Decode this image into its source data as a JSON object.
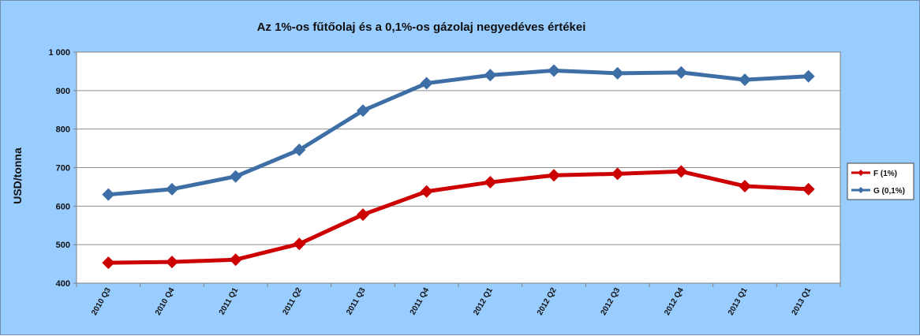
{
  "chart_data": {
    "type": "line",
    "title": "Az 1%-os fűtőolaj és a 0,1%-os gázolaj negyedéves értékei",
    "xlabel": "",
    "ylabel": "USD/tonna",
    "ylim": [
      400,
      1000
    ],
    "yticks": [
      400,
      500,
      600,
      700,
      800,
      900,
      1000
    ],
    "ytick_labels": [
      "400",
      "500",
      "600",
      "700",
      "800",
      "900",
      "1 000"
    ],
    "grid": true,
    "legend_position": "right",
    "categories": [
      "2010 Q3",
      "2010 Q4",
      "2011 Q1",
      "2011 Q2",
      "2011 Q3",
      "2011 Q4",
      "2012 Q1",
      "2012 Q2",
      "2012 Q3",
      "2012 Q4",
      "2013 Q1",
      "2013 Q1"
    ],
    "series": [
      {
        "name": "F (1%)",
        "color": "#cc0000",
        "marker": "diamond",
        "values": [
          453,
          455,
          461,
          502,
          578,
          638,
          662,
          680,
          684,
          690,
          652,
          644
        ]
      },
      {
        "name": "G (0,1%)",
        "color": "#3d6ea5",
        "marker": "diamond",
        "values": [
          630,
          644,
          677,
          746,
          848,
          919,
          940,
          952,
          945,
          947,
          928,
          937
        ]
      }
    ]
  }
}
